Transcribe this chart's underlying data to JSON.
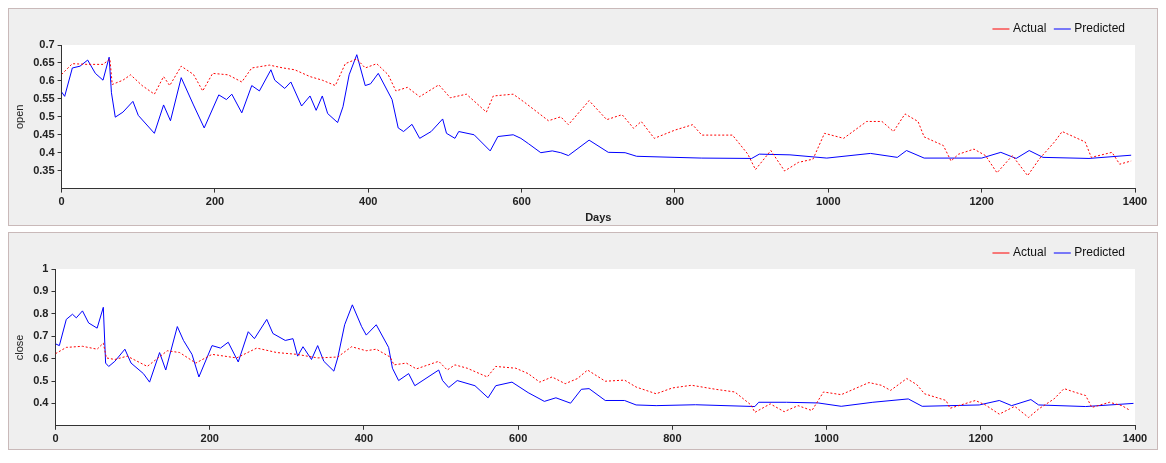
{
  "chart_data": [
    {
      "type": "line",
      "xlabel": "Days",
      "ylabel": "open",
      "xlim": [
        0,
        1400
      ],
      "xticks": [
        0,
        200,
        400,
        600,
        800,
        1000,
        1200,
        1400
      ],
      "ylim": [
        0.3,
        0.7
      ],
      "yticks": [
        0.35,
        0.4,
        0.45,
        0.5,
        0.55,
        0.6,
        0.65,
        0.7
      ],
      "legend": "top right",
      "marker": "none",
      "series": [
        {
          "name": "Actual",
          "color": "#ff0000",
          "line_style": "dotted",
          "x": [
            0,
            14,
            34,
            54,
            63,
            66,
            80,
            90,
            105,
            121,
            133,
            141,
            156,
            172,
            184,
            197,
            217,
            235,
            248,
            271,
            289,
            304,
            324,
            340,
            357,
            370,
            385,
            396,
            411,
            426,
            436,
            451,
            467,
            492,
            507,
            528,
            554,
            563,
            589,
            604,
            635,
            651,
            661,
            688,
            711,
            731,
            746,
            756,
            773,
            800,
            823,
            835,
            875,
            895,
            905,
            925,
            943,
            961,
            980,
            995,
            1020,
            1050,
            1070,
            1085,
            1100,
            1117,
            1125,
            1150,
            1160,
            1170,
            1190,
            1205,
            1220,
            1240,
            1260,
            1275,
            1295,
            1305,
            1335,
            1343,
            1370,
            1380,
            1395
          ],
          "values": [
            0.618,
            0.648,
            0.646,
            0.646,
            0.661,
            0.59,
            0.602,
            0.617,
            0.587,
            0.563,
            0.612,
            0.587,
            0.641,
            0.618,
            0.572,
            0.621,
            0.617,
            0.597,
            0.636,
            0.644,
            0.636,
            0.631,
            0.612,
            0.602,
            0.587,
            0.648,
            0.661,
            0.636,
            0.648,
            0.617,
            0.572,
            0.582,
            0.556,
            0.589,
            0.553,
            0.563,
            0.513,
            0.558,
            0.563,
            0.54,
            0.489,
            0.5,
            0.478,
            0.545,
            0.492,
            0.506,
            0.468,
            0.487,
            0.44,
            0.463,
            0.478,
            0.449,
            0.449,
            0.396,
            0.353,
            0.406,
            0.349,
            0.373,
            0.382,
            0.454,
            0.44,
            0.487,
            0.487,
            0.459,
            0.508,
            0.487,
            0.444,
            0.42,
            0.377,
            0.396,
            0.41,
            0.392,
            0.344,
            0.392,
            0.336,
            0.382,
            0.43,
            0.459,
            0.43,
            0.387,
            0.401,
            0.368,
            0.377
          ]
        },
        {
          "name": "Predicted",
          "color": "#0000ff",
          "line_style": "solid",
          "x": [
            0,
            4,
            14,
            24,
            34,
            44,
            54,
            62,
            65,
            70,
            80,
            93,
            100,
            121,
            133,
            142,
            156,
            172,
            186,
            205,
            215,
            222,
            235,
            248,
            258,
            273,
            278,
            291,
            299,
            313,
            324,
            332,
            340,
            347,
            360,
            367,
            375,
            385,
            396,
            403,
            413,
            431,
            439,
            446,
            457,
            467,
            482,
            497,
            502,
            513,
            518,
            538,
            559,
            569,
            589,
            599,
            609,
            625,
            640,
            651,
            661,
            688,
            713,
            735,
            750,
            800,
            835,
            900,
            910,
            950,
            998,
            1055,
            1090,
            1102,
            1125,
            1200,
            1225,
            1245,
            1262,
            1280,
            1340,
            1395
          ],
          "values": [
            0.569,
            0.557,
            0.636,
            0.641,
            0.658,
            0.621,
            0.602,
            0.666,
            0.567,
            0.499,
            0.513,
            0.543,
            0.504,
            0.454,
            0.533,
            0.489,
            0.609,
            0.533,
            0.469,
            0.561,
            0.548,
            0.563,
            0.511,
            0.587,
            0.572,
            0.631,
            0.602,
            0.579,
            0.597,
            0.53,
            0.558,
            0.518,
            0.558,
            0.509,
            0.484,
            0.528,
            0.617,
            0.673,
            0.587,
            0.592,
            0.621,
            0.548,
            0.469,
            0.459,
            0.479,
            0.44,
            0.459,
            0.494,
            0.454,
            0.44,
            0.459,
            0.45,
            0.405,
            0.445,
            0.45,
            0.44,
            0.425,
            0.4,
            0.405,
            0.4,
            0.392,
            0.435,
            0.401,
            0.4,
            0.39,
            0.387,
            0.385,
            0.384,
            0.396,
            0.394,
            0.385,
            0.398,
            0.387,
            0.406,
            0.385,
            0.385,
            0.401,
            0.384,
            0.406,
            0.387,
            0.384,
            0.393
          ]
        }
      ]
    },
    {
      "type": "line",
      "ylabel": "close",
      "xlim": [
        0,
        1400
      ],
      "xticks": [
        0,
        200,
        400,
        600,
        800,
        1000,
        1200,
        1400
      ],
      "ylim": [
        0.3,
        1
      ],
      "yticks": [
        0.4,
        0.5,
        0.6,
        0.7,
        0.8,
        0.9,
        1
      ],
      "legend": "top right",
      "marker": "none",
      "series": [
        {
          "name": "Actual",
          "color": "#ff0000",
          "line_style": "dotted",
          "x": [
            0,
            14,
            35,
            54,
            62,
            66,
            77,
            93,
            119,
            145,
            161,
            182,
            203,
            235,
            261,
            287,
            313,
            340,
            366,
            384,
            403,
            416,
            434,
            439,
            455,
            468,
            497,
            508,
            518,
            534,
            560,
            571,
            597,
            613,
            628,
            644,
            661,
            677,
            690,
            713,
            738,
            753,
            779,
            800,
            825,
            856,
            881,
            902,
            907,
            927,
            945,
            963,
            981,
            996,
            1019,
            1055,
            1071,
            1083,
            1104,
            1117,
            1127,
            1155,
            1160,
            1193,
            1206,
            1224,
            1244,
            1262,
            1275,
            1295,
            1308,
            1321,
            1336,
            1344,
            1367,
            1383,
            1393
          ],
          "values": [
            0.622,
            0.65,
            0.655,
            0.642,
            0.669,
            0.603,
            0.596,
            0.611,
            0.565,
            0.635,
            0.627,
            0.58,
            0.619,
            0.603,
            0.647,
            0.627,
            0.619,
            0.603,
            0.607,
            0.653,
            0.635,
            0.642,
            0.607,
            0.572,
            0.58,
            0.554,
            0.588,
            0.549,
            0.572,
            0.557,
            0.518,
            0.565,
            0.557,
            0.533,
            0.495,
            0.518,
            0.488,
            0.511,
            0.549,
            0.499,
            0.504,
            0.473,
            0.443,
            0.469,
            0.481,
            0.463,
            0.451,
            0.393,
            0.36,
            0.398,
            0.363,
            0.39,
            0.368,
            0.451,
            0.439,
            0.493,
            0.481,
            0.458,
            0.511,
            0.484,
            0.443,
            0.413,
            0.378,
            0.413,
            0.393,
            0.352,
            0.387,
            0.337,
            0.375,
            0.42,
            0.466,
            0.451,
            0.435,
            0.382,
            0.405,
            0.39,
            0.37
          ]
        },
        {
          "name": "Predicted",
          "color": "#0000ff",
          "line_style": "solid",
          "x": [
            0,
            5,
            14,
            22,
            27,
            35,
            43,
            54,
            62,
            65,
            69,
            77,
            90,
            98,
            114,
            122,
            135,
            143,
            158,
            166,
            177,
            186,
            203,
            214,
            224,
            237,
            250,
            258,
            274,
            282,
            298,
            308,
            314,
            321,
            332,
            340,
            348,
            361,
            366,
            375,
            385,
            397,
            403,
            416,
            432,
            437,
            445,
            458,
            466,
            497,
            502,
            510,
            521,
            544,
            561,
            571,
            592,
            613,
            634,
            649,
            668,
            682,
            692,
            713,
            738,
            753,
            779,
            830,
            907,
            912,
            948,
            989,
            1019,
            1060,
            1106,
            1124,
            1198,
            1224,
            1240,
            1265,
            1275,
            1336,
            1398
          ],
          "values": [
            0.666,
            0.658,
            0.775,
            0.798,
            0.782,
            0.813,
            0.759,
            0.736,
            0.829,
            0.58,
            0.565,
            0.588,
            0.642,
            0.58,
            0.533,
            0.495,
            0.627,
            0.549,
            0.743,
            0.681,
            0.619,
            0.518,
            0.658,
            0.647,
            0.673,
            0.585,
            0.72,
            0.689,
            0.775,
            0.712,
            0.681,
            0.689,
            0.611,
            0.653,
            0.596,
            0.658,
            0.588,
            0.544,
            0.603,
            0.751,
            0.84,
            0.743,
            0.705,
            0.751,
            0.65,
            0.557,
            0.502,
            0.533,
            0.479,
            0.549,
            0.502,
            0.471,
            0.502,
            0.479,
            0.425,
            0.479,
            0.495,
            0.448,
            0.409,
            0.425,
            0.401,
            0.463,
            0.466,
            0.413,
            0.413,
            0.393,
            0.39,
            0.394,
            0.386,
            0.405,
            0.405,
            0.402,
            0.387,
            0.405,
            0.42,
            0.387,
            0.393,
            0.413,
            0.39,
            0.417,
            0.393,
            0.386,
            0.4
          ]
        }
      ]
    }
  ]
}
